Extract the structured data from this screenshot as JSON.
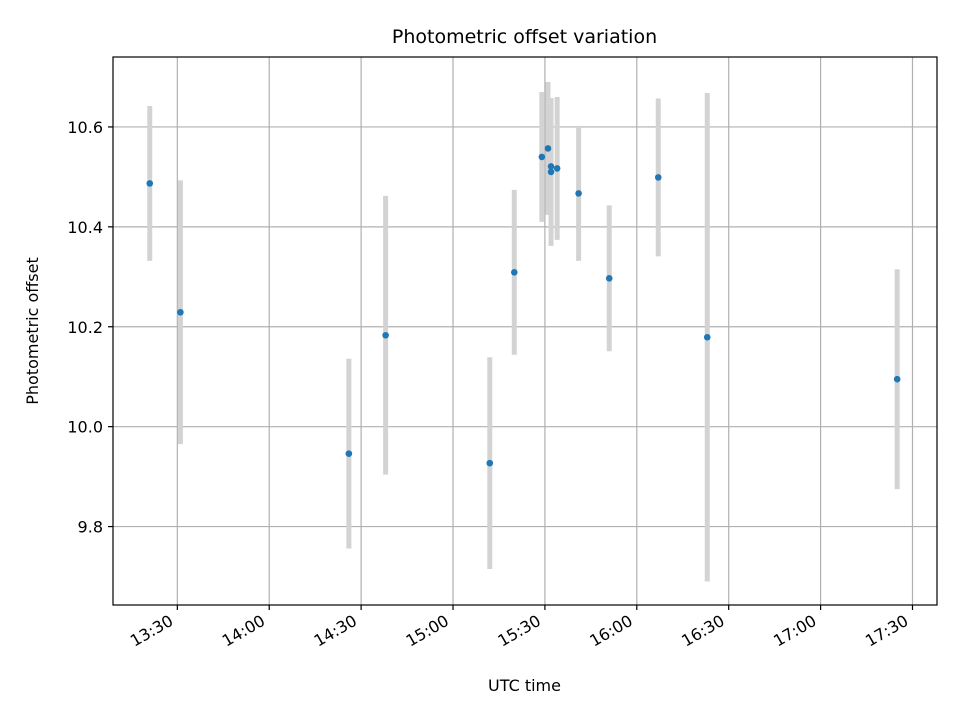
{
  "chart_data": {
    "type": "scatter",
    "title": "Photometric offset variation",
    "xlabel": "UTC time",
    "ylabel": "Photometric offset",
    "x_axis_type": "time",
    "xlim": [
      "13:09",
      "17:38"
    ],
    "ylim": [
      9.643,
      10.74
    ],
    "x_ticks": [
      "13:30",
      "14:00",
      "14:30",
      "15:00",
      "15:30",
      "16:00",
      "16:30",
      "17:00",
      "17:30"
    ],
    "y_ticks": [
      9.8,
      10.0,
      10.2,
      10.4,
      10.6
    ],
    "y_tick_labels": [
      "9.8",
      "10.0",
      "10.2",
      "10.4",
      "10.6"
    ],
    "grid": true,
    "marker_color": "#1f77b4",
    "errorbar_color": "#d3d3d3",
    "points": [
      {
        "x": "13:21",
        "y": 10.487,
        "err": 0.155
      },
      {
        "x": "13:31",
        "y": 10.229,
        "err": 0.264
      },
      {
        "x": "14:26",
        "y": 9.946,
        "err": 0.19
      },
      {
        "x": "14:38",
        "y": 10.183,
        "err": 0.279
      },
      {
        "x": "15:12",
        "y": 9.927,
        "err": 0.212
      },
      {
        "x": "15:20",
        "y": 10.309,
        "err": 0.165
      },
      {
        "x": "15:29",
        "y": 10.54,
        "err": 0.13
      },
      {
        "x": "15:31",
        "y": 10.557,
        "err": 0.133
      },
      {
        "x": "15:32",
        "y": 10.51,
        "err": 0.148
      },
      {
        "x": "15:32",
        "y": 10.521,
        "err": 0.136
      },
      {
        "x": "15:34",
        "y": 10.517,
        "err": 0.143
      },
      {
        "x": "15:41",
        "y": 10.467,
        "err": 0.135
      },
      {
        "x": "15:51",
        "y": 10.297,
        "err": 0.146
      },
      {
        "x": "16:07",
        "y": 10.499,
        "err": 0.158
      },
      {
        "x": "16:23",
        "y": 10.179,
        "err": 0.489
      },
      {
        "x": "17:25",
        "y": 10.095,
        "err": 0.22
      }
    ]
  }
}
